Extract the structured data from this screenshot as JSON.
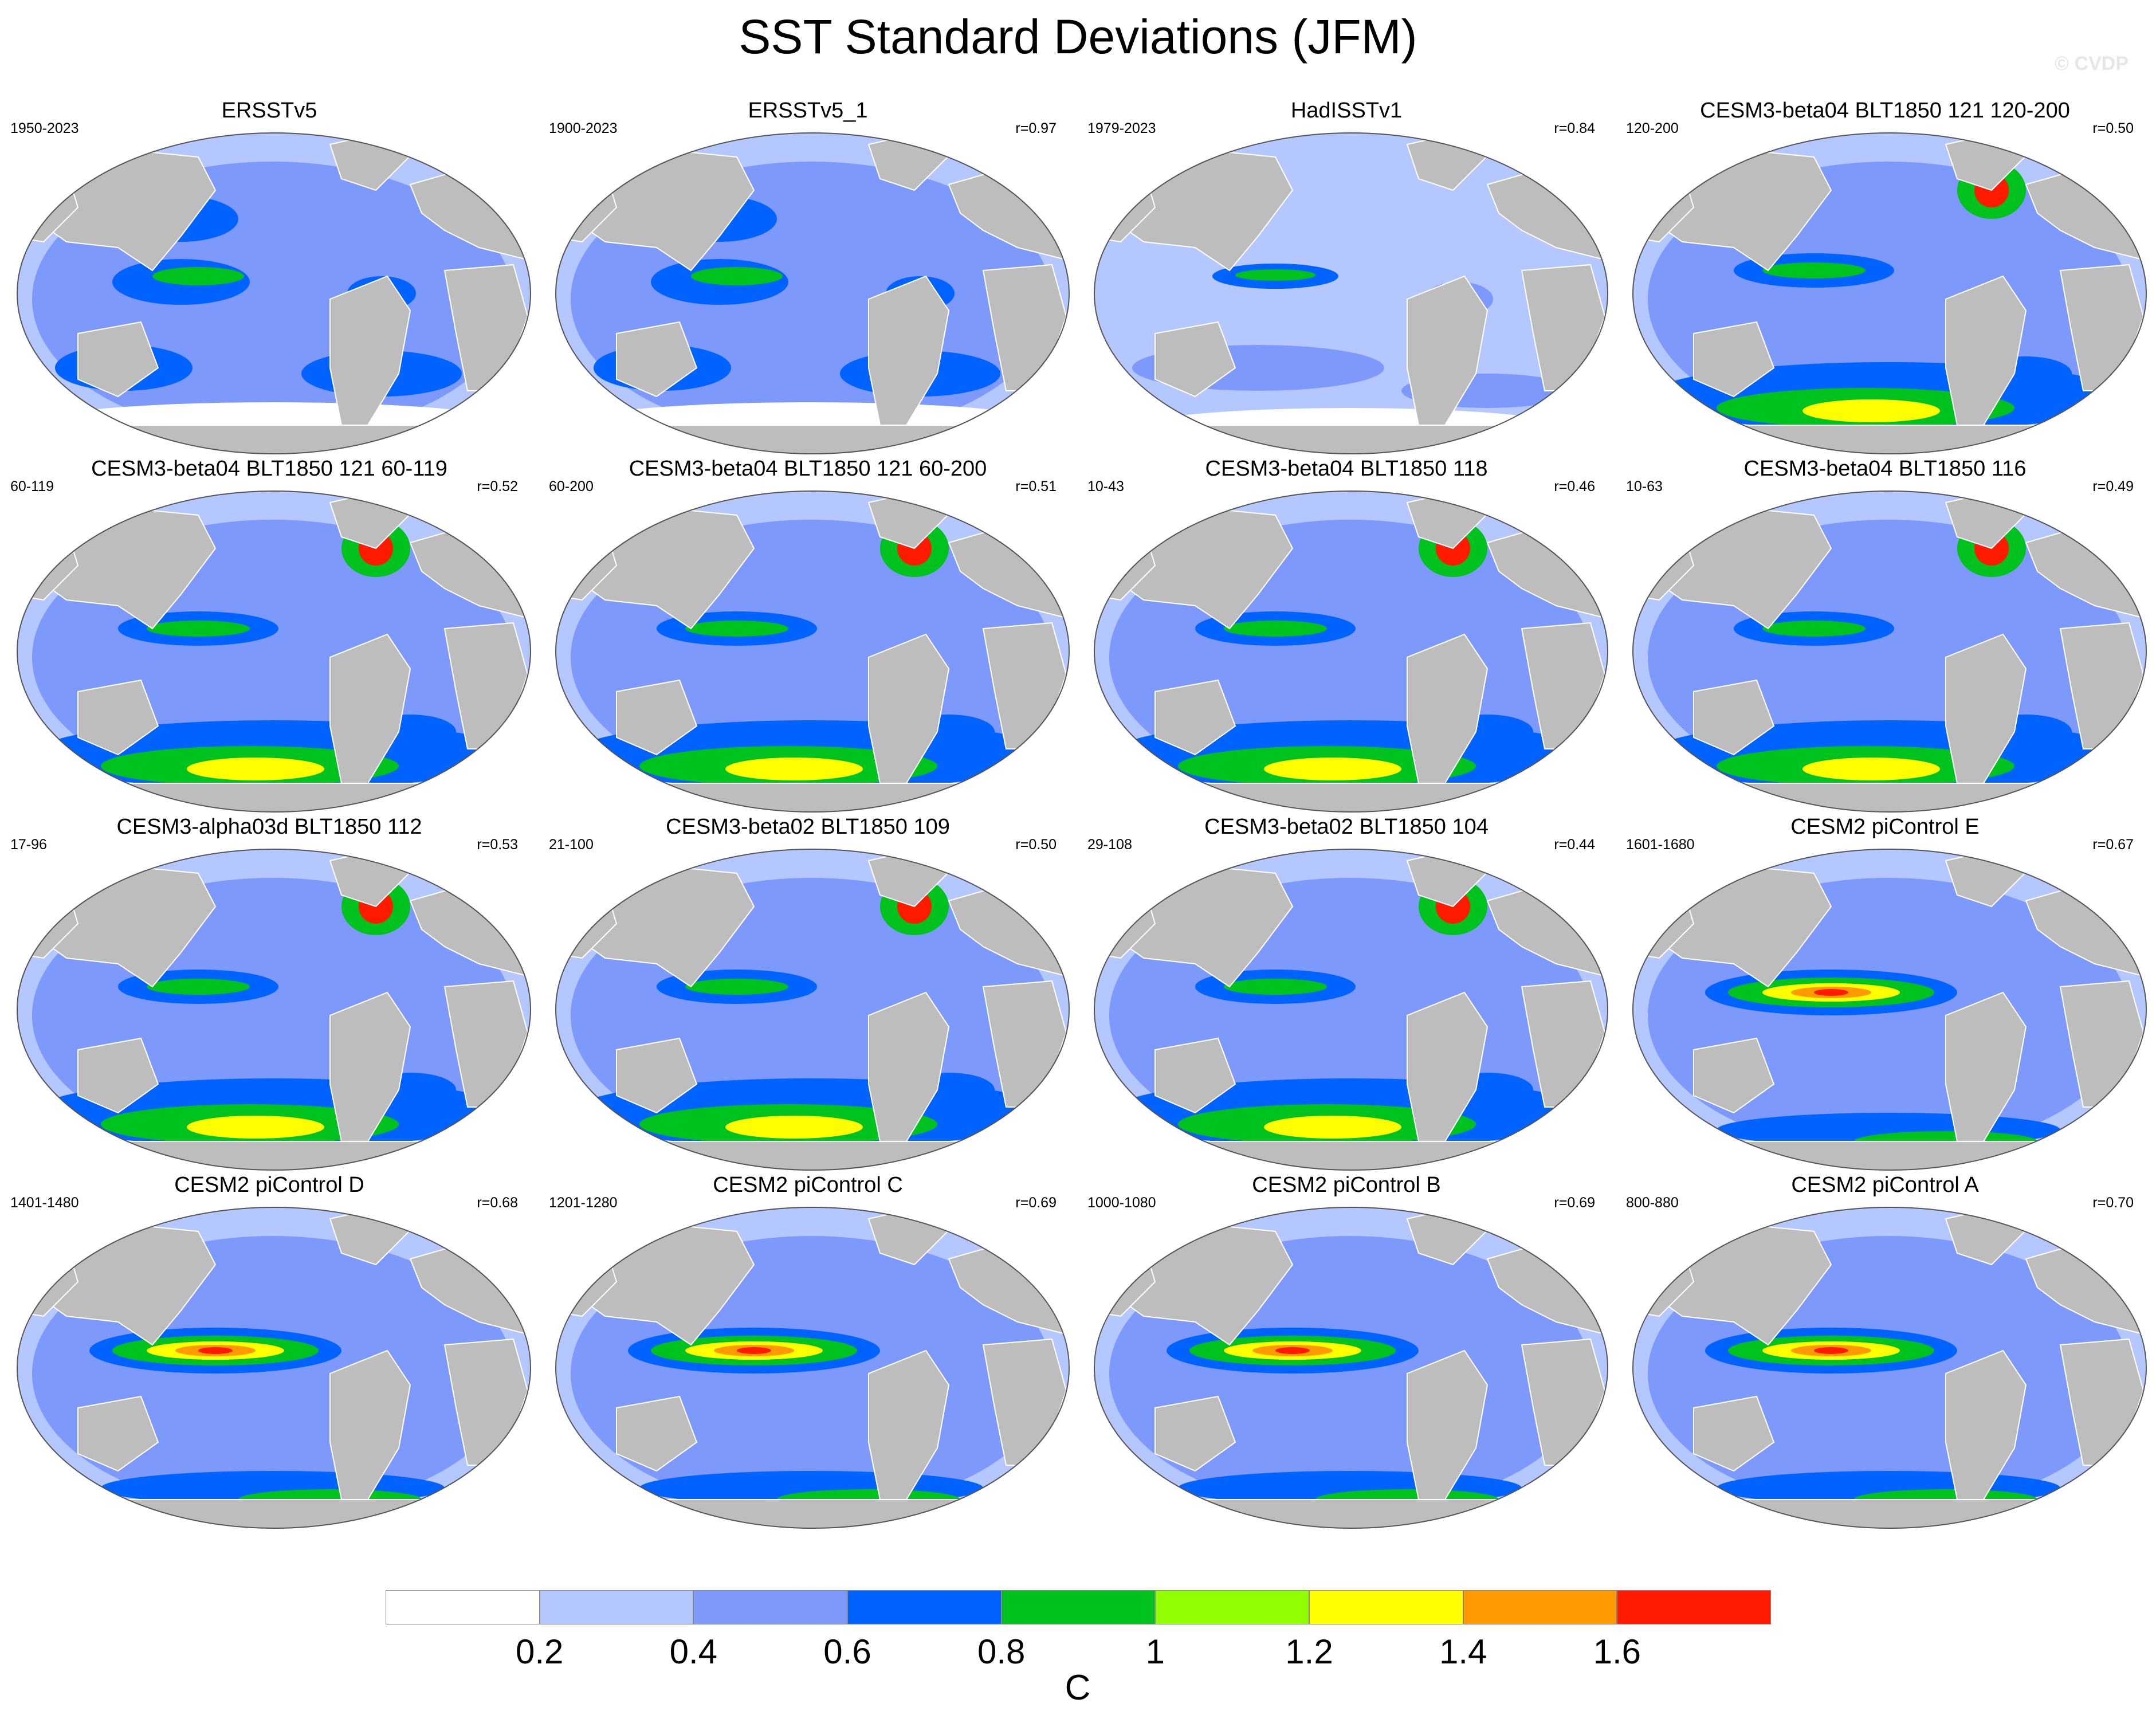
{
  "title": "SST Standard Deviations (JFM)",
  "watermark": "© CVDP",
  "panels": [
    {
      "title": "ERSSTv5",
      "period": "1950-2023",
      "corr": "",
      "pattern": "obs"
    },
    {
      "title": "ERSSTv5_1",
      "period": "1900-2023",
      "corr": "r=0.97",
      "pattern": "obs"
    },
    {
      "title": "HadISSTv1",
      "period": "1979-2023",
      "corr": "r=0.84",
      "pattern": "obs-had"
    },
    {
      "title": "CESM3-beta04 BLT1850 121 120-200",
      "period": "120-200",
      "corr": "r=0.50",
      "pattern": "cesm3"
    },
    {
      "title": "CESM3-beta04 BLT1850 121 60-119",
      "period": "60-119",
      "corr": "r=0.52",
      "pattern": "cesm3"
    },
    {
      "title": "CESM3-beta04 BLT1850 121 60-200",
      "period": "60-200",
      "corr": "r=0.51",
      "pattern": "cesm3"
    },
    {
      "title": "CESM3-beta04 BLT1850 118",
      "period": "10-43",
      "corr": "r=0.46",
      "pattern": "cesm3"
    },
    {
      "title": "CESM3-beta04 BLT1850 116",
      "period": "10-63",
      "corr": "r=0.49",
      "pattern": "cesm3"
    },
    {
      "title": "CESM3-alpha03d BLT1850 112",
      "period": "17-96",
      "corr": "r=0.53",
      "pattern": "cesm3"
    },
    {
      "title": "CESM3-beta02 BLT1850 109",
      "period": "21-100",
      "corr": "r=0.50",
      "pattern": "cesm3"
    },
    {
      "title": "CESM3-beta02 BLT1850 104",
      "period": "29-108",
      "corr": "r=0.44",
      "pattern": "cesm3"
    },
    {
      "title": "CESM2 piControl E",
      "period": "1601-1680",
      "corr": "r=0.67",
      "pattern": "cesm2"
    },
    {
      "title": "CESM2 piControl D",
      "period": "1401-1480",
      "corr": "r=0.68",
      "pattern": "cesm2"
    },
    {
      "title": "CESM2 piControl C",
      "period": "1201-1280",
      "corr": "r=0.69",
      "pattern": "cesm2"
    },
    {
      "title": "CESM2 piControl B",
      "period": "1000-1080",
      "corr": "r=0.69",
      "pattern": "cesm2"
    },
    {
      "title": "CESM2 piControl A",
      "period": "800-880",
      "corr": "r=0.70",
      "pattern": "cesm2"
    }
  ],
  "colorbar": {
    "colors": [
      "#ffffff",
      "#b4c7ff",
      "#7d99fb",
      "#0062ff",
      "#00c21e",
      "#92ff00",
      "#ffff00",
      "#ff9a00",
      "#ff1a00"
    ],
    "tick_labels": [
      "0.2",
      "0.4",
      "0.6",
      "0.8",
      "1",
      "1.2",
      "1.4",
      "1.6"
    ],
    "unit": "C"
  },
  "map_colors": {
    "land": "#bdbdbd",
    "ocean_base": "#b4c7ff"
  }
}
